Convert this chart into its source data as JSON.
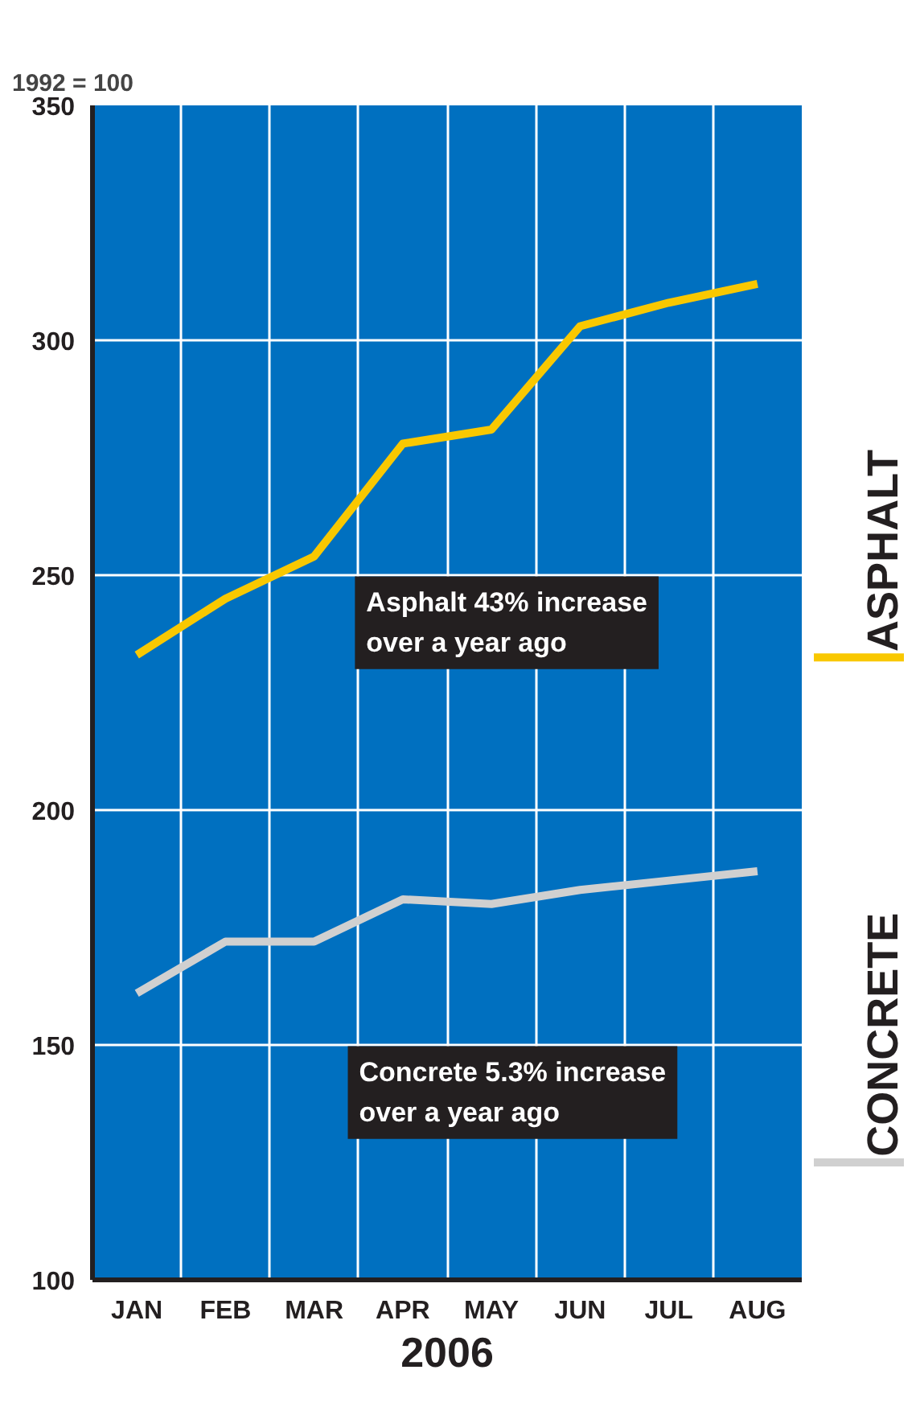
{
  "chart_data": {
    "type": "line",
    "ylabel": "1992 = 100",
    "xlabel": "2006",
    "categories": [
      "JAN",
      "FEB",
      "MAR",
      "APR",
      "MAY",
      "JUN",
      "JUL",
      "AUG"
    ],
    "series": [
      {
        "name": "ASPHALT",
        "color": "#f9c800",
        "values": [
          233,
          245,
          254,
          278,
          281,
          303,
          308,
          312
        ]
      },
      {
        "name": "CONCRETE",
        "color": "#d0d0d0",
        "values": [
          161,
          172,
          172,
          181,
          180,
          183,
          185,
          187
        ]
      }
    ],
    "ylim": [
      100,
      350
    ],
    "yticks": [
      100,
      150,
      200,
      250,
      300,
      350
    ],
    "grid": true,
    "legend": "right",
    "marker": "none",
    "line_style": "solid",
    "annotations": [
      "Asphalt 43% increase over a year ago",
      "Concrete 5.3% increase over a year ago"
    ]
  }
}
